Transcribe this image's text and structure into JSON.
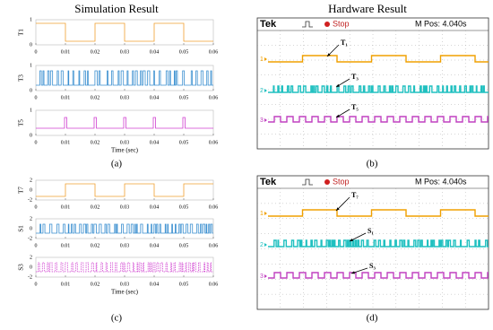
{
  "headers": [
    "Simulation Result",
    "Hardware Result"
  ],
  "panels": [
    {
      "label": "(a)",
      "xticks": [
        "0",
        "0.01",
        "0.02",
        "0.03",
        "0.04",
        "0.05",
        "0.06"
      ],
      "xlabel": "Time (sec)",
      "plots": [
        {
          "ylabel": "T1",
          "yticks": [
            "1",
            "0"
          ]
        },
        {
          "ylabel": "T3",
          "yticks": [
            "1",
            "0"
          ]
        },
        {
          "ylabel": "T5",
          "yticks": [
            "1",
            "0"
          ]
        }
      ]
    },
    {
      "label": "(b)",
      "brand": "Tek",
      "status": "Stop",
      "mpos": "M Pos: 4.040s",
      "channels": [
        "1",
        "2",
        "3"
      ],
      "annotations": [
        "T₁",
        "T₃",
        "T₅"
      ]
    },
    {
      "label": "(c)",
      "xticks": [
        "0",
        "0.01",
        "0.02",
        "0.03",
        "0.04",
        "0.05",
        "0.06"
      ],
      "xlabel": "Time (sec)",
      "plots": [
        {
          "ylabel": "T7",
          "yticks": [
            "2",
            "0",
            "-2"
          ]
        },
        {
          "ylabel": "S1",
          "yticks": [
            "2",
            "0",
            "-2"
          ]
        },
        {
          "ylabel": "S3",
          "yticks": [
            "2",
            "0",
            "-2"
          ]
        }
      ]
    },
    {
      "label": "(d)",
      "brand": "Tek",
      "status": "Stop",
      "mpos": "M Pos: 4.040s",
      "channels": [
        "1",
        "2",
        "3"
      ],
      "annotations": [
        "T₇",
        "S₁",
        "S₃"
      ]
    }
  ]
}
